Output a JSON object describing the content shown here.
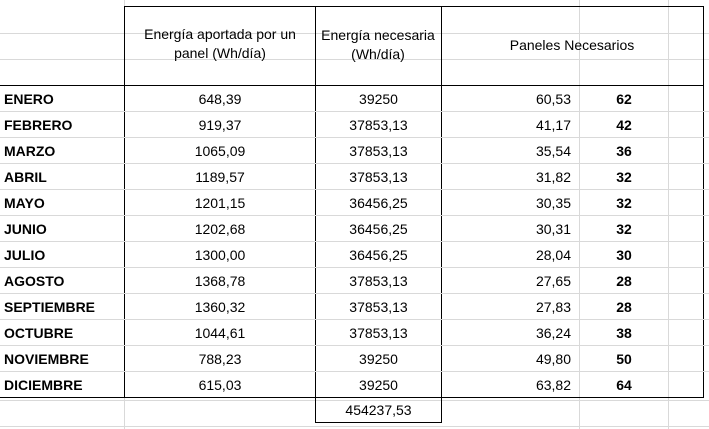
{
  "headers": {
    "energia_panel": "Energía aportada por un panel (Wh/día)",
    "energia_necesaria": "Energía necesaria (Wh/día)",
    "paneles_necesarios": "Paneles Necesarios"
  },
  "rows": [
    {
      "month": "ENERO",
      "panel": "648,39",
      "needed": "39250",
      "ratio": "60,53",
      "panels": "62"
    },
    {
      "month": "FEBRERO",
      "panel": "919,37",
      "needed": "37853,13",
      "ratio": "41,17",
      "panels": "42"
    },
    {
      "month": "MARZO",
      "panel": "1065,09",
      "needed": "37853,13",
      "ratio": "35,54",
      "panels": "36"
    },
    {
      "month": "ABRIL",
      "panel": "1189,57",
      "needed": "37853,13",
      "ratio": "31,82",
      "panels": "32"
    },
    {
      "month": "MAYO",
      "panel": "1201,15",
      "needed": "36456,25",
      "ratio": "30,35",
      "panels": "32"
    },
    {
      "month": "JUNIO",
      "panel": "1202,68",
      "needed": "36456,25",
      "ratio": "30,31",
      "panels": "32"
    },
    {
      "month": "JULIO",
      "panel": "1300,00",
      "needed": "36456,25",
      "ratio": "28,04",
      "panels": "30"
    },
    {
      "month": "AGOSTO",
      "panel": "1368,78",
      "needed": "37853,13",
      "ratio": "27,65",
      "panels": "28"
    },
    {
      "month": "SEPTIEMBRE",
      "panel": "1360,32",
      "needed": "37853,13",
      "ratio": "27,83",
      "panels": "28"
    },
    {
      "month": "OCTUBRE",
      "panel": "1044,61",
      "needed": "37853,13",
      "ratio": "36,24",
      "panels": "38"
    },
    {
      "month": "NOVIEMBRE",
      "panel": "788,23",
      "needed": "39250",
      "ratio": "49,80",
      "panels": "50"
    },
    {
      "month": "DICIEMBRE",
      "panel": "615,03",
      "needed": "39250",
      "ratio": "63,82",
      "panels": "64"
    }
  ],
  "total_needed": "454237,53"
}
